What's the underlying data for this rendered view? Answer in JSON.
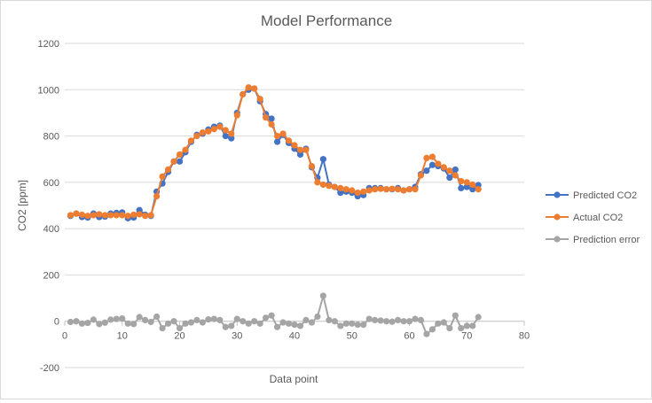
{
  "chart_data": {
    "type": "scatter",
    "title": "Model Performance",
    "xlabel": "Data point",
    "ylabel": "CO2 [ppm]",
    "xlim": [
      0,
      80
    ],
    "ylim": [
      -200,
      1200
    ],
    "x_ticks": [
      0,
      10,
      20,
      30,
      40,
      50,
      60,
      70,
      80
    ],
    "y_ticks": [
      -200,
      0,
      200,
      400,
      600,
      800,
      1000,
      1200
    ],
    "grid": true,
    "legend_position": "right",
    "x": [
      1,
      2,
      3,
      4,
      5,
      6,
      7,
      8,
      9,
      10,
      11,
      12,
      13,
      14,
      15,
      16,
      17,
      18,
      19,
      20,
      21,
      22,
      23,
      24,
      25,
      26,
      27,
      28,
      29,
      30,
      31,
      32,
      33,
      34,
      35,
      36,
      37,
      38,
      39,
      40,
      41,
      42,
      43,
      44,
      45,
      46,
      47,
      48,
      49,
      50,
      51,
      52,
      53,
      54,
      55,
      56,
      57,
      58,
      59,
      60,
      61,
      62,
      63,
      64,
      65,
      66,
      67,
      68,
      69,
      70,
      71,
      72
    ],
    "series": [
      {
        "name": "Predicted CO2",
        "color": "#4472C4",
        "values": [
          455,
          465,
          450,
          448,
          465,
          450,
          452,
          465,
          468,
          470,
          445,
          448,
          480,
          460,
          455,
          560,
          595,
          645,
          690,
          690,
          730,
          775,
          805,
          810,
          828,
          840,
          845,
          800,
          790,
          900,
          980,
          1000,
          1005,
          950,
          895,
          875,
          775,
          805,
          770,
          745,
          720,
          745,
          665,
          620,
          700,
          590,
          580,
          555,
          560,
          555,
          540,
          545,
          575,
          575,
          575,
          570,
          570,
          575,
          565,
          570,
          580,
          635,
          650,
          675,
          670,
          660,
          620,
          655,
          575,
          580,
          570,
          588
        ]
      },
      {
        "name": "Actual CO2",
        "color": "#ED7D31",
        "values": [
          458,
          465,
          460,
          455,
          458,
          462,
          458,
          458,
          458,
          458,
          455,
          460,
          462,
          455,
          458,
          540,
          625,
          655,
          690,
          720,
          740,
          780,
          800,
          815,
          820,
          830,
          840,
          825,
          810,
          890,
          980,
          1010,
          1005,
          960,
          880,
          850,
          800,
          810,
          780,
          760,
          740,
          740,
          670,
          600,
          590,
          585,
          580,
          575,
          570,
          565,
          555,
          560,
          565,
          570,
          572,
          570,
          572,
          570,
          565,
          570,
          570,
          630,
          705,
          710,
          680,
          665,
          650,
          630,
          605,
          600,
          590,
          570
        ]
      },
      {
        "name": "Prediction error",
        "color": "#A5A5A5",
        "values": [
          -3,
          0,
          -10,
          -7,
          7,
          -12,
          -6,
          7,
          10,
          12,
          -10,
          -12,
          18,
          5,
          -3,
          20,
          -30,
          -10,
          0,
          -30,
          -10,
          -5,
          5,
          -5,
          8,
          10,
          5,
          -25,
          -20,
          10,
          0,
          -10,
          0,
          -10,
          15,
          25,
          -25,
          -5,
          -10,
          -15,
          -20,
          5,
          -5,
          20,
          110,
          5,
          0,
          -20,
          -10,
          -10,
          -15,
          -15,
          10,
          5,
          3,
          0,
          -2,
          5,
          0,
          0,
          10,
          5,
          -55,
          -35,
          -10,
          -5,
          -30,
          25,
          -30,
          -20,
          -20,
          18
        ]
      }
    ]
  }
}
